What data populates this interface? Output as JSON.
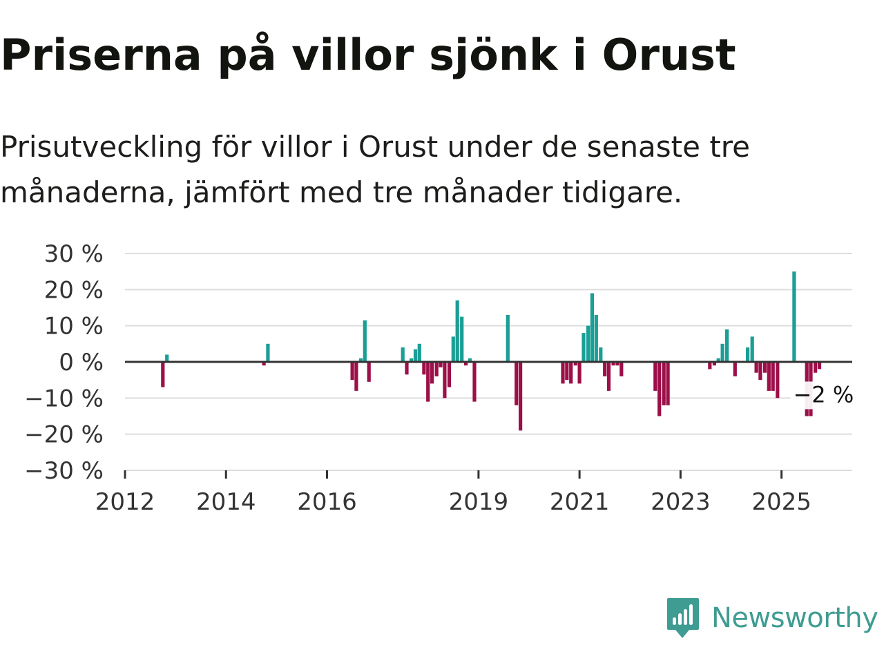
{
  "title": "Priserna på villor sjönk i Orust",
  "subtitle": "Prisutveckling för villor i Orust under de senaste tre månaderna, jämfört med tre månader tidigare.",
  "brand": "Newsworthy",
  "colors": {
    "positive": "#1a9e96",
    "negative": "#9c0f48",
    "axis": "#333333",
    "grid": "#dddddd",
    "brand": "#3f9c92"
  },
  "chart_data": {
    "type": "bar",
    "title": "Priserna på villor sjönk i Orust",
    "xlabel": "",
    "ylabel": "",
    "unit": "%",
    "ylim": [
      -30,
      30
    ],
    "yticks": [
      30,
      20,
      10,
      0,
      -10,
      -20,
      -30
    ],
    "ytick_labels": [
      "30 %",
      "20 %",
      "10 %",
      "0 %",
      "−10 %",
      "−20 %",
      "−30 %"
    ],
    "xlim": [
      2012.0,
      2026.4
    ],
    "xticks": [
      2012,
      2014,
      2016,
      2019,
      2021,
      2023,
      2025
    ],
    "xtick_labels": [
      "2012",
      "2014",
      "2016",
      "2019",
      "2021",
      "2023",
      "2025"
    ],
    "annotation": {
      "text": "−2 %",
      "x": 2025.75,
      "y": -2
    },
    "series": [
      {
        "name": "Prisutveckling",
        "points": [
          {
            "x": 2012.75,
            "y": -7
          },
          {
            "x": 2012.83,
            "y": 2
          },
          {
            "x": 2014.75,
            "y": -1
          },
          {
            "x": 2014.83,
            "y": 5
          },
          {
            "x": 2016.5,
            "y": -5
          },
          {
            "x": 2016.58,
            "y": -8
          },
          {
            "x": 2016.67,
            "y": 1
          },
          {
            "x": 2016.75,
            "y": 11.5
          },
          {
            "x": 2016.83,
            "y": -5.5
          },
          {
            "x": 2017.5,
            "y": 4
          },
          {
            "x": 2017.58,
            "y": -3.5
          },
          {
            "x": 2017.67,
            "y": 1
          },
          {
            "x": 2017.75,
            "y": 3.5
          },
          {
            "x": 2017.83,
            "y": 5
          },
          {
            "x": 2017.92,
            "y": -3.5
          },
          {
            "x": 2018.0,
            "y": -11
          },
          {
            "x": 2018.08,
            "y": -6
          },
          {
            "x": 2018.17,
            "y": -4
          },
          {
            "x": 2018.25,
            "y": -1.5
          },
          {
            "x": 2018.33,
            "y": -10
          },
          {
            "x": 2018.42,
            "y": -7
          },
          {
            "x": 2018.5,
            "y": 7
          },
          {
            "x": 2018.58,
            "y": 17
          },
          {
            "x": 2018.67,
            "y": 12.5
          },
          {
            "x": 2018.75,
            "y": -1
          },
          {
            "x": 2018.83,
            "y": 1
          },
          {
            "x": 2018.92,
            "y": -11
          },
          {
            "x": 2019.58,
            "y": 13
          },
          {
            "x": 2019.75,
            "y": -12
          },
          {
            "x": 2019.83,
            "y": -19
          },
          {
            "x": 2020.67,
            "y": -6
          },
          {
            "x": 2020.75,
            "y": -5
          },
          {
            "x": 2020.83,
            "y": -6
          },
          {
            "x": 2020.92,
            "y": -1
          },
          {
            "x": 2021.0,
            "y": -6
          },
          {
            "x": 2021.08,
            "y": 8
          },
          {
            "x": 2021.17,
            "y": 10
          },
          {
            "x": 2021.25,
            "y": 19
          },
          {
            "x": 2021.33,
            "y": 13
          },
          {
            "x": 2021.42,
            "y": 4
          },
          {
            "x": 2021.5,
            "y": -4
          },
          {
            "x": 2021.58,
            "y": -8
          },
          {
            "x": 2021.67,
            "y": -1
          },
          {
            "x": 2021.75,
            "y": -1
          },
          {
            "x": 2021.83,
            "y": -4
          },
          {
            "x": 2022.5,
            "y": -8
          },
          {
            "x": 2022.58,
            "y": -15
          },
          {
            "x": 2022.67,
            "y": -12
          },
          {
            "x": 2022.75,
            "y": -12
          },
          {
            "x": 2023.58,
            "y": -2
          },
          {
            "x": 2023.67,
            "y": -1
          },
          {
            "x": 2023.75,
            "y": 1
          },
          {
            "x": 2023.83,
            "y": 5
          },
          {
            "x": 2023.92,
            "y": 9
          },
          {
            "x": 2024.08,
            "y": -4
          },
          {
            "x": 2024.33,
            "y": 4
          },
          {
            "x": 2024.42,
            "y": 7
          },
          {
            "x": 2024.5,
            "y": -3
          },
          {
            "x": 2024.58,
            "y": -5
          },
          {
            "x": 2024.67,
            "y": -3
          },
          {
            "x": 2024.75,
            "y": -8
          },
          {
            "x": 2024.83,
            "y": -8
          },
          {
            "x": 2024.92,
            "y": -10
          },
          {
            "x": 2025.25,
            "y": 25
          },
          {
            "x": 2025.5,
            "y": -15
          },
          {
            "x": 2025.58,
            "y": -15
          },
          {
            "x": 2025.67,
            "y": -3
          },
          {
            "x": 2025.75,
            "y": -2
          }
        ]
      }
    ]
  }
}
